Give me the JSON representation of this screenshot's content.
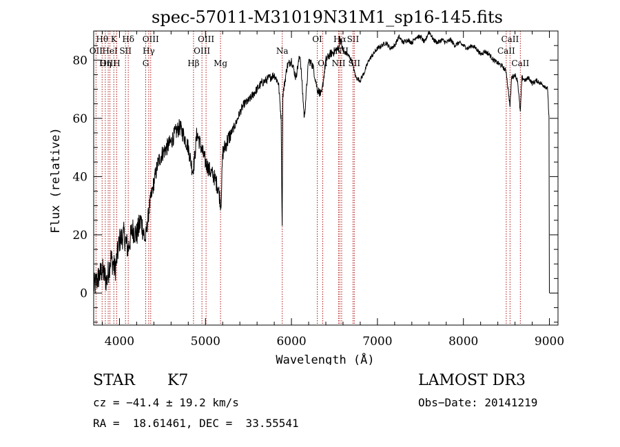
{
  "chart_data": {
    "type": "line",
    "title": "spec-57011-M31019N31M1_sp16-145.fits",
    "xlabel": "Wavelength (Å)",
    "ylabel": "Flux (relative)",
    "xlim": [
      3700,
      9100
    ],
    "ylim": [
      -11,
      90
    ],
    "xticks": [
      4000,
      5000,
      6000,
      7000,
      8000,
      9000
    ],
    "yticks": [
      0,
      20,
      40,
      60,
      80
    ],
    "grid": false,
    "series": [
      {
        "name": "flux",
        "x": [
          3700,
          3750,
          3800,
          3850,
          3900,
          3950,
          4000,
          4050,
          4100,
          4150,
          4200,
          4250,
          4300,
          4350,
          4400,
          4450,
          4500,
          4550,
          4600,
          4650,
          4700,
          4750,
          4800,
          4850,
          4870,
          4900,
          4950,
          5000,
          5050,
          5100,
          5150,
          5180,
          5200,
          5250,
          5300,
          5350,
          5400,
          5450,
          5500,
          5550,
          5600,
          5650,
          5700,
          5750,
          5800,
          5850,
          5880,
          5892,
          5900,
          5950,
          6000,
          6050,
          6100,
          6150,
          6200,
          6250,
          6300,
          6350,
          6400,
          6450,
          6500,
          6550,
          6563,
          6600,
          6650,
          6700,
          6750,
          6800,
          6850,
          6900,
          6950,
          7000,
          7050,
          7100,
          7150,
          7200,
          7250,
          7300,
          7350,
          7400,
          7450,
          7500,
          7550,
          7600,
          7650,
          7700,
          7750,
          7800,
          7850,
          7900,
          7950,
          8000,
          8050,
          8100,
          8150,
          8200,
          8250,
          8300,
          8350,
          8400,
          8450,
          8498,
          8520,
          8542,
          8560,
          8600,
          8630,
          8662,
          8680,
          8720,
          8760,
          8800,
          8850,
          8900,
          8950,
          8980,
          8995,
          9000
        ],
        "values": [
          2,
          5,
          8,
          4,
          12,
          8,
          18,
          20,
          15,
          22,
          20,
          25,
          18,
          30,
          38,
          45,
          48,
          50,
          52,
          55,
          57,
          54,
          50,
          42,
          45,
          55,
          50,
          45,
          42,
          40,
          36,
          30,
          48,
          52,
          55,
          58,
          62,
          65,
          66,
          68,
          70,
          72,
          73,
          74,
          75,
          72,
          60,
          22,
          68,
          78,
          80,
          74,
          82,
          60,
          80,
          78,
          70,
          68,
          80,
          82,
          83,
          84,
          88,
          83,
          82,
          80,
          74,
          73,
          76,
          80,
          82,
          84,
          85,
          86,
          84,
          85,
          88,
          86,
          87,
          86,
          88,
          88,
          86,
          90,
          87,
          86,
          87,
          86,
          87,
          85,
          86,
          85,
          84,
          85,
          84,
          82,
          83,
          82,
          80,
          79,
          78,
          76,
          70,
          64,
          74,
          75,
          73,
          62,
          74,
          73,
          74,
          72,
          73,
          72,
          71,
          70,
          60,
          0
        ]
      }
    ],
    "line_markers": [
      {
        "label": "Hθ",
        "wavelength": 3798,
        "row": 1
      },
      {
        "label": "OII",
        "wavelength": 3727,
        "row": 2
      },
      {
        "label": "OIII",
        "wavelength": 3869,
        "row": 3
      },
      {
        "label": "K",
        "wavelength": 3934,
        "row": 1
      },
      {
        "label": "HeI",
        "wavelength": 3889,
        "row": 2
      },
      {
        "label": "Hη",
        "wavelength": 3835,
        "row": 3
      },
      {
        "label": "H",
        "wavelength": 3968,
        "row": 3
      },
      {
        "label": "Hδ",
        "wavelength": 4102,
        "row": 1
      },
      {
        "label": "SII",
        "wavelength": 4070,
        "row": 2
      },
      {
        "label": "OIII",
        "wavelength": 4363,
        "row": 1
      },
      {
        "label": "Hγ",
        "wavelength": 4340,
        "row": 2
      },
      {
        "label": "G",
        "wavelength": 4305,
        "row": 3
      },
      {
        "label": "OIII",
        "wavelength": 5007,
        "row": 1
      },
      {
        "label": "OIII",
        "wavelength": 4959,
        "row": 2
      },
      {
        "label": "Hβ",
        "wavelength": 4861,
        "row": 3
      },
      {
        "label": "Mg",
        "wavelength": 5175,
        "row": 3
      },
      {
        "label": "Na",
        "wavelength": 5893,
        "row": 2
      },
      {
        "label": "OI",
        "wavelength": 6300,
        "row": 1
      },
      {
        "label": "OI",
        "wavelength": 6364,
        "row": 3
      },
      {
        "label": "Hα",
        "wavelength": 6563,
        "row": 1
      },
      {
        "label": "SII",
        "wavelength": 6716,
        "row": 1
      },
      {
        "label": "NII",
        "wavelength": 6584,
        "row": 2
      },
      {
        "label": "NII",
        "wavelength": 6548,
        "row": 3
      },
      {
        "label": "SII",
        "wavelength": 6731,
        "row": 3
      },
      {
        "label": "CaII",
        "wavelength": 8542,
        "row": 1
      },
      {
        "label": "CaII",
        "wavelength": 8498,
        "row": 2
      },
      {
        "label": "CaII",
        "wavelength": 8662,
        "row": 3
      }
    ]
  },
  "info": {
    "object_class": "STAR",
    "subclass": "K7",
    "survey": "LAMOST DR3",
    "redshift": "cz = −41.4 ± 19.2 km/s",
    "obs_date": "Obs−Date: 20141219",
    "coords": "RA =  18.61461, DEC =  33.55541"
  },
  "colors": {
    "line": "#000000",
    "marker": "#b01010",
    "axis": "#000000"
  }
}
